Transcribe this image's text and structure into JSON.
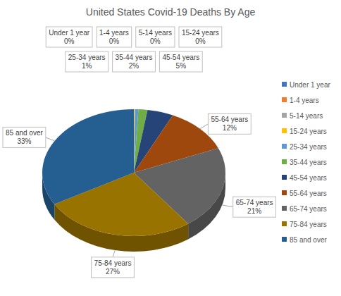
{
  "chart_data": {
    "type": "pie",
    "title": "United States Covid-19 Deaths By Age",
    "categories": [
      "Under 1 year",
      "1-4 years",
      "5-14 years",
      "15-24 years",
      "25-34 years",
      "35-44 years",
      "45-54 years",
      "55-64 years",
      "65-74 years",
      "75-84 years",
      "85 and over"
    ],
    "values": [
      0.02,
      0.01,
      0.02,
      0.14,
      0.6,
      1.6,
      4.6,
      11.7,
      21.2,
      26.8,
      33.3
    ],
    "value_labels": [
      "0%",
      "0%",
      "0%",
      "0%",
      "1%",
      "2%",
      "5%",
      "12%",
      "21%",
      "27%",
      "33%"
    ],
    "colors": [
      "#4472c4",
      "#ed7d31",
      "#a5a5a5",
      "#ffc000",
      "#5b9bd5",
      "#70ad47",
      "#264478",
      "#9e480e",
      "#636363",
      "#997300",
      "#255e91"
    ],
    "data_labels": true,
    "legend": "right"
  }
}
